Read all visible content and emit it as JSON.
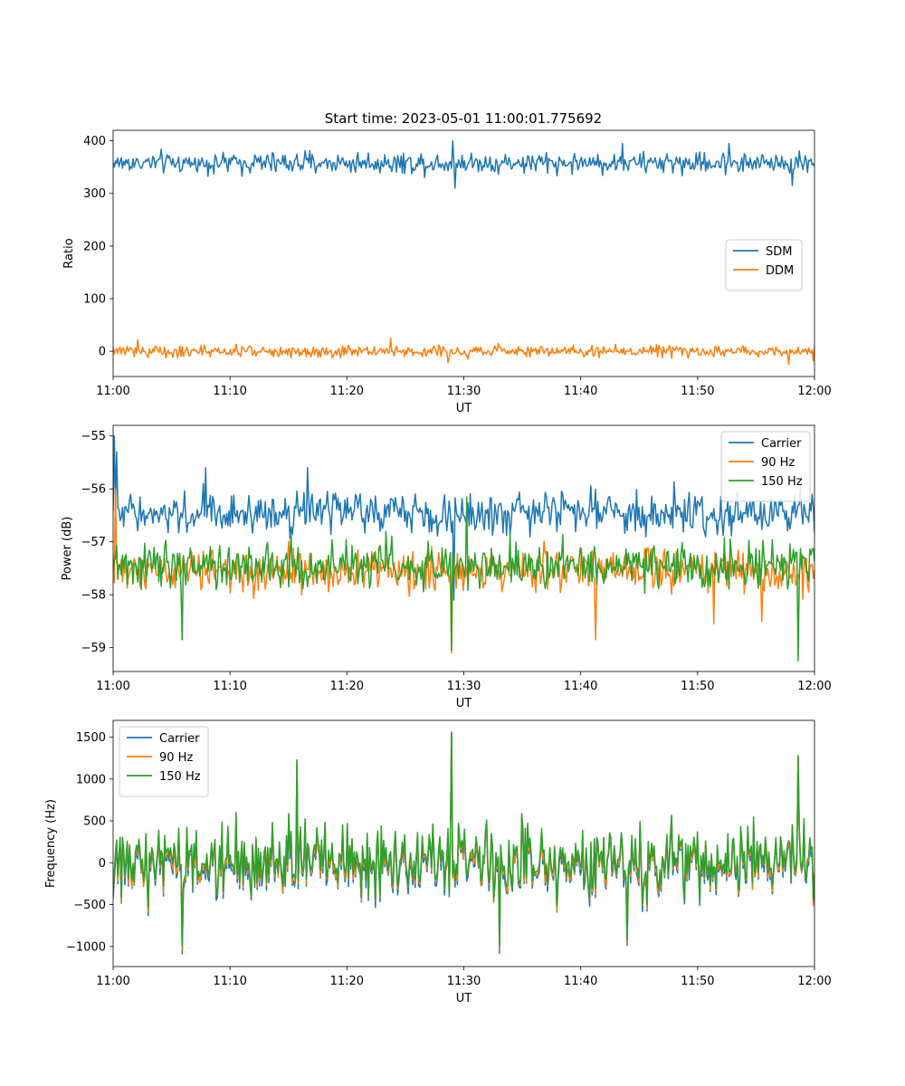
{
  "title": "Start time: 2023-05-01 11:00:01.775692",
  "colors": {
    "blue": "#1f77b4",
    "orange": "#ff7f0e",
    "green": "#2ca02c"
  },
  "chart_data": [
    {
      "type": "line",
      "xlabel": "UT",
      "ylabel": "Ratio",
      "xticks": [
        "11:00",
        "11:10",
        "11:20",
        "11:30",
        "11:40",
        "11:50",
        "12:00"
      ],
      "xlim": [
        "11:00",
        "12:00"
      ],
      "ylim": [
        -48,
        420
      ],
      "yticks": [
        0,
        100,
        200,
        300,
        400
      ],
      "legend": "center-right",
      "series": [
        {
          "name": "SDM",
          "color": "#1f77b4",
          "mean": 358,
          "noise": 14,
          "spikes": [
            [
              29.0,
              400
            ],
            [
              29.2,
              310
            ],
            [
              43.6,
              395
            ],
            [
              52.7,
              395
            ],
            [
              58.1,
              315
            ]
          ]
        },
        {
          "name": "DDM",
          "color": "#ff7f0e",
          "mean": 0,
          "noise": 8,
          "spikes": [
            [
              2.1,
              22
            ],
            [
              23.7,
              25
            ],
            [
              28.6,
              -22
            ],
            [
              57.8,
              -25
            ],
            [
              59.9,
              -18
            ]
          ]
        }
      ]
    },
    {
      "type": "line",
      "xlabel": "UT",
      "ylabel": "Power (dB)",
      "xticks": [
        "11:00",
        "11:10",
        "11:20",
        "11:30",
        "11:40",
        "11:50",
        "12:00"
      ],
      "xlim": [
        "11:00",
        "12:00"
      ],
      "ylim": [
        -59.45,
        -54.8
      ],
      "yticks": [
        -59,
        -58,
        -57,
        -56,
        -55
      ],
      "legend": "top-right",
      "series": [
        {
          "name": "Carrier",
          "color": "#1f77b4",
          "mean": -56.45,
          "noise": 0.28,
          "spikes": [
            [
              0.1,
              -55.0
            ],
            [
              0.3,
              -55.3
            ],
            [
              7.9,
              -55.6
            ],
            [
              16.6,
              -55.6
            ],
            [
              29.1,
              -58.1
            ],
            [
              59.8,
              -56.1
            ]
          ]
        },
        {
          "name": "90 Hz",
          "color": "#ff7f0e",
          "mean": -57.55,
          "noise": 0.28,
          "spikes": [
            [
              0.2,
              -56.0
            ],
            [
              28.9,
              -59.1
            ],
            [
              41.3,
              -58.85
            ],
            [
              51.4,
              -58.55
            ],
            [
              55.5,
              -58.5
            ]
          ]
        },
        {
          "name": "150 Hz",
          "color": "#2ca02c",
          "mean": -57.45,
          "noise": 0.3,
          "spikes": [
            [
              5.9,
              -58.85
            ],
            [
              28.9,
              -59.05
            ],
            [
              30.3,
              -56.15
            ],
            [
              58.6,
              -59.25
            ]
          ]
        }
      ]
    },
    {
      "type": "line",
      "xlabel": "UT",
      "ylabel": "Frequency (Hz)",
      "xticks": [
        "11:00",
        "11:10",
        "11:20",
        "11:30",
        "11:40",
        "11:50",
        "12:00"
      ],
      "xlim": [
        "11:00",
        "12:00"
      ],
      "ylim": [
        -1240,
        1700
      ],
      "yticks": [
        -1000,
        -500,
        0,
        500,
        1000,
        1500
      ],
      "legend": "top-left",
      "series": [
        {
          "name": "Carrier",
          "color": "#1f77b4",
          "mean": -55,
          "noise": 320,
          "spikes": [
            [
              5.9,
              -1090
            ],
            [
              15.7,
              1220
            ],
            [
              28.9,
              1560
            ],
            [
              33.1,
              -1080
            ],
            [
              44.0,
              -990
            ],
            [
              58.6,
              1270
            ]
          ]
        },
        {
          "name": "90 Hz",
          "color": "#ff7f0e",
          "mean": -15,
          "noise": 320,
          "spikes": [
            [
              5.9,
              -1040
            ],
            [
              15.7,
              1220
            ],
            [
              28.9,
              1560
            ],
            [
              33.1,
              -1040
            ],
            [
              44.0,
              -950
            ],
            [
              58.6,
              1270
            ]
          ]
        },
        {
          "name": "150 Hz",
          "color": "#2ca02c",
          "mean": 20,
          "noise": 320,
          "spikes": [
            [
              5.9,
              -990
            ],
            [
              15.7,
              1230
            ],
            [
              28.9,
              1560
            ],
            [
              33.1,
              -1000
            ],
            [
              44.0,
              -920
            ],
            [
              58.6,
              1280
            ]
          ]
        }
      ]
    }
  ]
}
